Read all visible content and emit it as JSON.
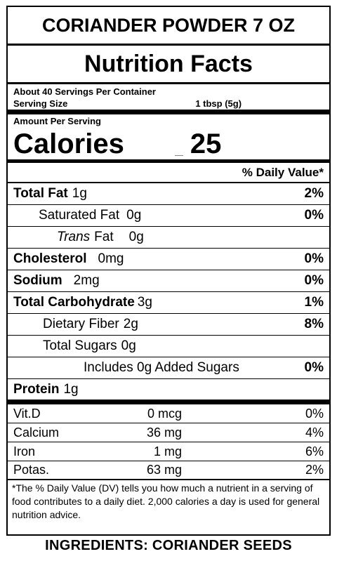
{
  "product": "CORIANDER POWDER 7 OZ",
  "title": "Nutrition Facts",
  "servings": "About 40 Servings Per Container",
  "serving_size_label": "Serving Size",
  "serving_size_value": "1 tbsp (5g)",
  "amount_per_serving": "Amount Per Serving",
  "calories_label": "Calories",
  "calories_value": "25",
  "dv_header": "% Daily Value*",
  "nutrients": [
    {
      "name": "Total Fat",
      "amount": "1g",
      "pct": "2%"
    },
    {
      "name": "Saturated Fat",
      "amount": "0g",
      "pct": "0%"
    },
    {
      "name": "Trans",
      "name_rest": "Fat",
      "amount": "0g",
      "pct": ""
    },
    {
      "name": "Cholesterol",
      "amount": "0mg",
      "pct": "0%"
    },
    {
      "name": "Sodium",
      "amount": "2mg",
      "pct": "0%"
    },
    {
      "name": "Total Carbohydrate",
      "amount": "3g",
      "pct": "1%"
    },
    {
      "name": "Dietary Fiber",
      "amount": "2g",
      "pct": "8%"
    },
    {
      "name": "Total Sugars",
      "amount": "0g",
      "pct": ""
    },
    {
      "name": "Includes 0g Added Sugars",
      "amount": "",
      "pct": "0%"
    },
    {
      "name": "Protein",
      "amount": "1g",
      "pct": ""
    }
  ],
  "vitamins": [
    {
      "name": "Vit.D",
      "amount": "0 mcg",
      "pct": "0%"
    },
    {
      "name": "Calcium",
      "amount": "36 mg",
      "pct": "4%"
    },
    {
      "name": "Iron",
      "amount": "1 mg",
      "pct": "6%"
    },
    {
      "name": "Potas.",
      "amount": "63 mg",
      "pct": "2%"
    }
  ],
  "footnote": "*The % Daily Value (DV) tells you how much a nutrient in a serving of food contributes to a daily diet. 2,000 calories a day is used for general nutrition advice.",
  "ingredients": "INGREDIENTS: CORIANDER SEEDS"
}
